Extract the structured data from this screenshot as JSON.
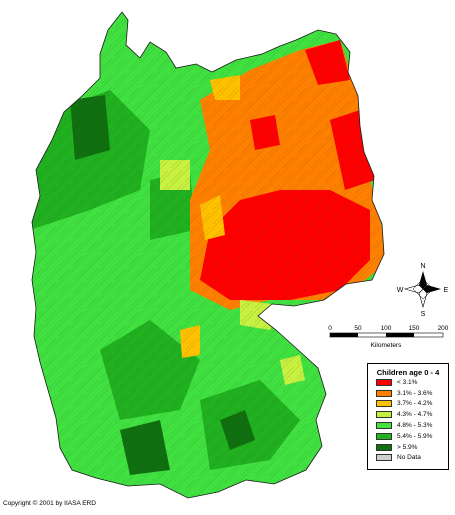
{
  "legend": {
    "title": "Children age 0 - 4",
    "items": [
      {
        "label": "< 3.1%",
        "color": "#ff0000"
      },
      {
        "label": "3.1% - 3.6%",
        "color": "#ff8000"
      },
      {
        "label": "3.7% - 4.2%",
        "color": "#ffc000"
      },
      {
        "label": "4.3% - 4.7%",
        "color": "#c8f040"
      },
      {
        "label": "4.8% - 5.3%",
        "color": "#40e040"
      },
      {
        "label": "5.4% - 5.9%",
        "color": "#20b020"
      },
      {
        "label": "> 5.9%",
        "color": "#107010"
      },
      {
        "label": "No Data",
        "color": "#d0d0d0"
      }
    ]
  },
  "scale": {
    "ticks": [
      "0",
      "50",
      "100",
      "150",
      "200"
    ],
    "unit": "Kilometers"
  },
  "compass": {
    "n": "N",
    "s": "S",
    "e": "E",
    "w": "W"
  },
  "copyright": "Copyright © 2001 by IIASA ERD"
}
